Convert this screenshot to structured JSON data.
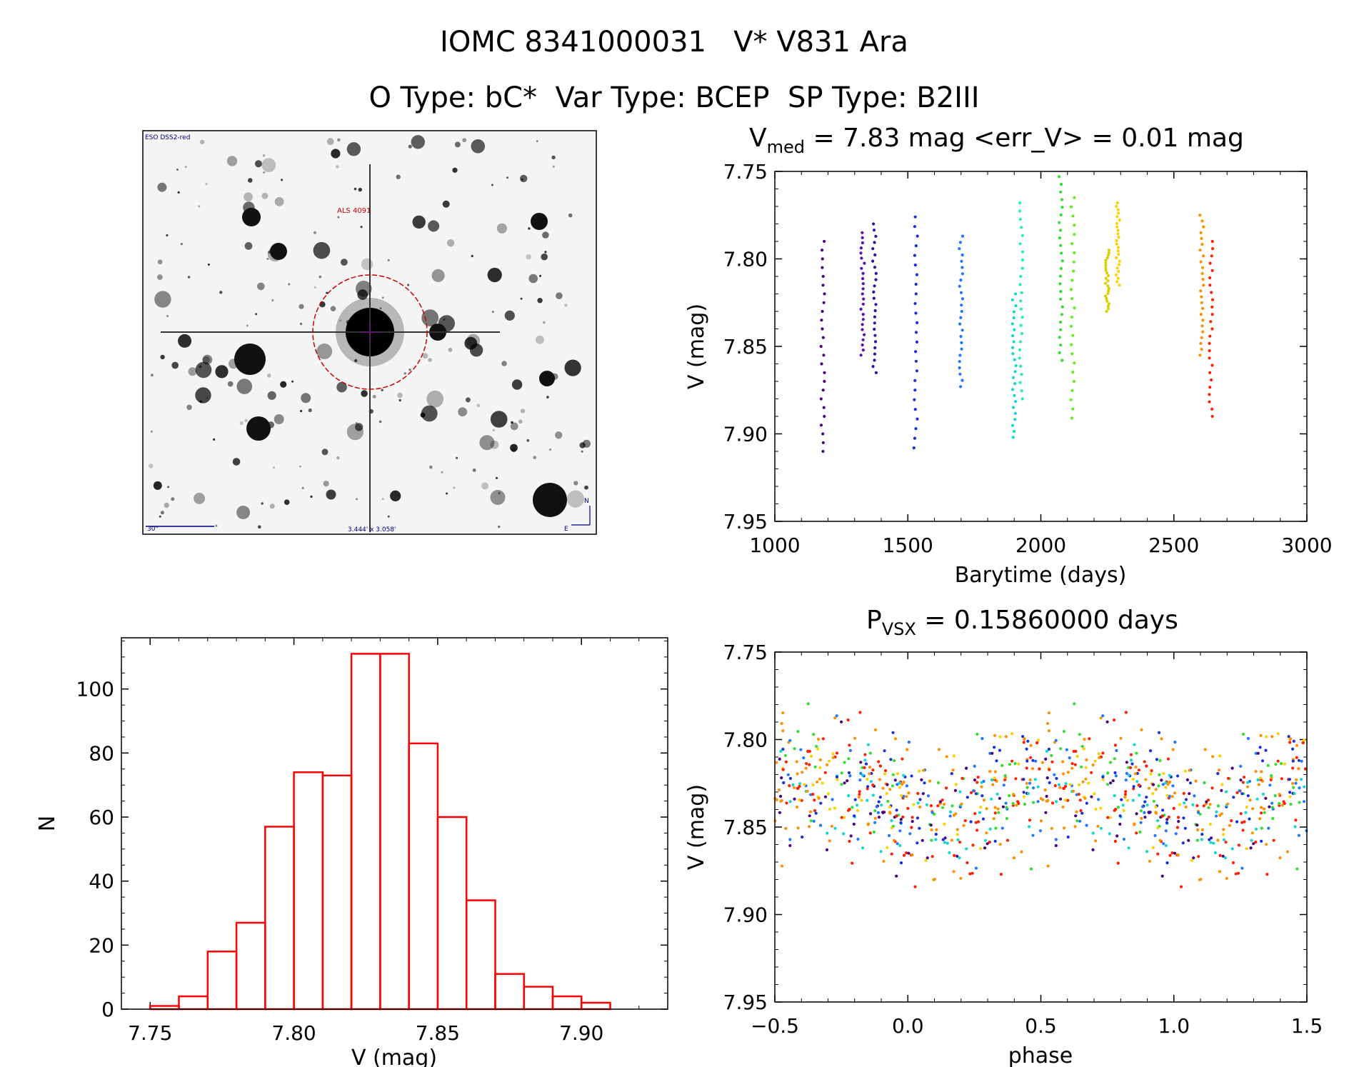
{
  "header": {
    "line1": "IOMC 8341000031   V* V831 Ara",
    "line2": "O Type: bC*  Var Type: BCEP  SP Type: B2III"
  },
  "image_panel": {
    "survey_label": "ESO DSS2-red",
    "target_label": "ALS 4091",
    "scale_label": "30\"",
    "fov_label": "3.444' x 3.058'",
    "north_label": "N",
    "east_label": "E"
  },
  "colors": {
    "hist_bar": "#ff0000",
    "circle": "#cc0000",
    "label": "#000080"
  },
  "chart_data": [
    {
      "type": "scatter",
      "title_prefix": "V",
      "title_sub": "med",
      "title_rest": " = 7.83 mag <err_V> = 0.01 mag",
      "xlabel": "Barytime (days)",
      "ylabel": "V (mag)",
      "xlim": [
        1000,
        3000
      ],
      "ylim": [
        7.95,
        7.75
      ],
      "y_inverted": true,
      "xticks": [
        "1000",
        "1500",
        "2000",
        "2500",
        "3000"
      ],
      "yticks": [
        "7.75",
        "7.80",
        "7.85",
        "7.90",
        "7.95"
      ],
      "points_per_season": 25,
      "seasons": [
        {
          "x": 1180,
          "ymin": 7.79,
          "ymax": 7.91,
          "color": "#4b0080"
        },
        {
          "x": 1330,
          "ymin": 7.785,
          "ymax": 7.855,
          "color": "#5a10b0"
        },
        {
          "x": 1375,
          "ymin": 7.78,
          "ymax": 7.865,
          "color": "#3a0aa8"
        },
        {
          "x": 1530,
          "ymin": 7.776,
          "ymax": 7.908,
          "color": "#1530e0"
        },
        {
          "x": 1700,
          "ymin": 7.787,
          "ymax": 7.873,
          "color": "#1e78ff"
        },
        {
          "x": 1900,
          "ymin": 7.82,
          "ymax": 7.902,
          "color": "#10d8d0"
        },
        {
          "x": 1925,
          "ymin": 7.768,
          "ymax": 7.88,
          "color": "#20f0b0"
        },
        {
          "x": 2075,
          "ymin": 7.753,
          "ymax": 7.858,
          "color": "#30e030"
        },
        {
          "x": 2120,
          "ymin": 7.765,
          "ymax": 7.891,
          "color": "#60f020"
        },
        {
          "x": 2250,
          "ymin": 7.795,
          "ymax": 7.83,
          "color": "#d8d000"
        },
        {
          "x": 2290,
          "ymin": 7.768,
          "ymax": 7.815,
          "color": "#ffd000"
        },
        {
          "x": 2605,
          "ymin": 7.775,
          "ymax": 7.855,
          "color": "#ff9000"
        },
        {
          "x": 2640,
          "ymin": 7.79,
          "ymax": 7.89,
          "color": "#ff2000"
        }
      ]
    },
    {
      "type": "bar",
      "xlabel": "V (mag)",
      "ylabel": "N",
      "xlim": [
        7.74,
        7.93
      ],
      "ylim": [
        0,
        116
      ],
      "xticks": [
        "7.75",
        "7.80",
        "7.85",
        "7.90"
      ],
      "yticks": [
        "0",
        "20",
        "40",
        "60",
        "80",
        "100"
      ],
      "bin_width": 0.01,
      "bin_starts": [
        7.75,
        7.76,
        7.77,
        7.78,
        7.79,
        7.8,
        7.81,
        7.82,
        7.83,
        7.84,
        7.85,
        7.86,
        7.87,
        7.88,
        7.89,
        7.9
      ],
      "values": [
        1,
        4,
        18,
        27,
        57,
        74,
        73,
        111,
        111,
        83,
        60,
        34,
        11,
        7,
        4,
        2
      ]
    },
    {
      "type": "scatter",
      "title_prefix": "P",
      "title_sub": "VSX",
      "title_rest": " = 0.15860000 days",
      "xlabel": "phase",
      "ylabel": "V (mag)",
      "xlim": [
        -0.5,
        1.5
      ],
      "ylim": [
        7.95,
        7.75
      ],
      "y_inverted": true,
      "xticks": [
        "−0.5",
        "0.0",
        "0.5",
        "1.0",
        "1.5"
      ],
      "yticks": [
        "7.75",
        "7.80",
        "7.85",
        "7.90",
        "7.95"
      ],
      "period_days": 0.1586,
      "point_colors": [
        "#4b0080",
        "#1530e0",
        "#1e78ff",
        "#10d8d0",
        "#30e030",
        "#ffd000",
        "#ff9000",
        "#ff2000",
        "#ff2000",
        "#ff9000"
      ]
    }
  ]
}
